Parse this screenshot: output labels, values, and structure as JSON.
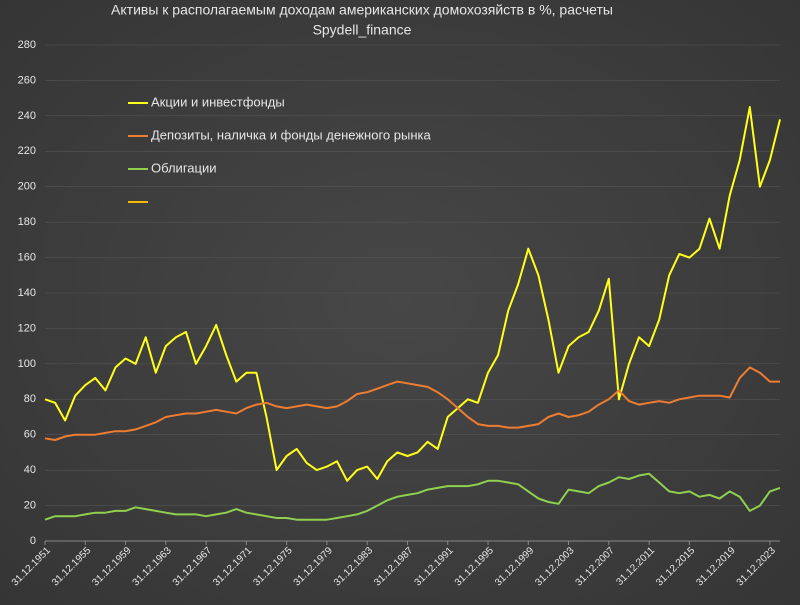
{
  "chart_data": {
    "type": "line",
    "title": "Активы к располагаемым доходам американских домохозяйств в %, расчеты",
    "subtitle": "Spydell_finance",
    "categories": [
      "31.12.1951",
      null,
      null,
      null,
      "31.12.1955",
      null,
      null,
      null,
      "31.12.1959",
      null,
      null,
      null,
      "31.12.1963",
      null,
      null,
      null,
      "31.12.1967",
      null,
      null,
      null,
      "31.12.1971",
      null,
      null,
      null,
      "31.12.1975",
      null,
      null,
      null,
      "31.12.1979",
      null,
      null,
      null,
      "31.12.1983",
      null,
      null,
      null,
      "31.12.1987",
      null,
      null,
      null,
      "31.12.1991",
      null,
      null,
      null,
      "31.12.1995",
      null,
      null,
      null,
      "31.12.1999",
      null,
      null,
      null,
      "31.12.2003",
      null,
      null,
      null,
      "31.12.2007",
      null,
      null,
      null,
      "31.12.2011",
      null,
      null,
      null,
      "31.12.2015",
      null,
      null,
      null,
      "31.12.2019",
      null,
      null,
      null,
      "31.12.2023",
      null
    ],
    "series": [
      {
        "name": "Акции и инвестфонды",
        "color": "#ffff1a",
        "values": [
          80,
          78,
          68,
          82,
          88,
          92,
          85,
          98,
          103,
          100,
          115,
          95,
          110,
          115,
          118,
          100,
          110,
          122,
          105,
          90,
          95,
          95,
          70,
          40,
          48,
          52,
          44,
          40,
          42,
          45,
          34,
          40,
          42,
          35,
          45,
          50,
          48,
          50,
          56,
          52,
          70,
          75,
          80,
          78,
          95,
          105,
          130,
          145,
          165,
          150,
          125,
          95,
          110,
          115,
          118,
          130,
          148,
          80,
          100,
          115,
          110,
          125,
          150,
          162,
          160,
          165,
          182,
          165,
          195,
          215,
          245,
          200,
          215,
          238
        ]
      },
      {
        "name": "Депозиты, наличка и фонды денежного рынка",
        "color": "#ed7d31",
        "values": [
          58,
          57,
          59,
          60,
          60,
          60,
          61,
          62,
          62,
          63,
          65,
          67,
          70,
          71,
          72,
          72,
          73,
          74,
          73,
          72,
          75,
          77,
          78,
          76,
          75,
          76,
          77,
          76,
          75,
          76,
          79,
          83,
          84,
          86,
          88,
          90,
          89,
          88,
          87,
          84,
          80,
          75,
          70,
          66,
          65,
          65,
          64,
          64,
          65,
          66,
          70,
          72,
          70,
          71,
          73,
          77,
          80,
          85,
          79,
          77,
          78,
          79,
          78,
          80,
          81,
          82,
          82,
          82,
          81,
          92,
          98,
          95,
          90,
          90
        ]
      },
      {
        "name": "Облигации",
        "color": "#8fd14f",
        "values": [
          12,
          14,
          14,
          14,
          15,
          16,
          16,
          17,
          17,
          19,
          18,
          17,
          16,
          15,
          15,
          15,
          14,
          15,
          16,
          18,
          16,
          15,
          14,
          13,
          13,
          12,
          12,
          12,
          12,
          13,
          14,
          15,
          17,
          20,
          23,
          25,
          26,
          27,
          29,
          30,
          31,
          31,
          31,
          32,
          34,
          34,
          33,
          32,
          28,
          24,
          22,
          21,
          29,
          28,
          27,
          31,
          33,
          36,
          35,
          37,
          38,
          33,
          28,
          27,
          28,
          25,
          26,
          24,
          28,
          25,
          17,
          20,
          28,
          30
        ]
      }
    ],
    "ylim": [
      0,
      280
    ],
    "yticks": [
      0,
      20,
      40,
      60,
      80,
      100,
      120,
      140,
      160,
      180,
      200,
      220,
      240,
      260,
      280
    ],
    "grid": true
  }
}
